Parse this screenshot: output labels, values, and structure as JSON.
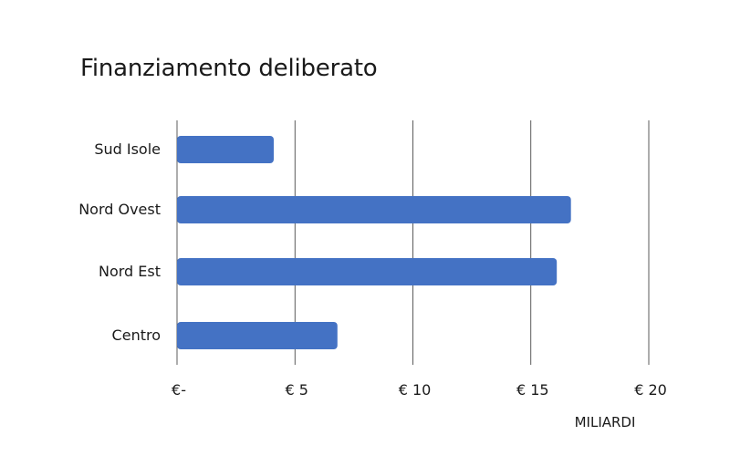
{
  "chart_data": {
    "type": "bar",
    "orientation": "horizontal",
    "title": "Finanziamento deliberato",
    "categories": [
      "Sud Isole",
      "Nord Ovest",
      "Nord Est",
      "Centro"
    ],
    "values": [
      4.1,
      16.7,
      16.1,
      6.8
    ],
    "xlim": [
      0,
      20
    ],
    "x_ticks": [
      0,
      5,
      10,
      15,
      20
    ],
    "x_tick_labels": [
      "€-",
      "€ 5",
      "€ 10",
      "€ 15",
      "€ 20"
    ],
    "x_unit_label": "MILIARDI",
    "grid": "vertical",
    "bar_color": "#4472C4",
    "gridline_color": "#333333"
  }
}
